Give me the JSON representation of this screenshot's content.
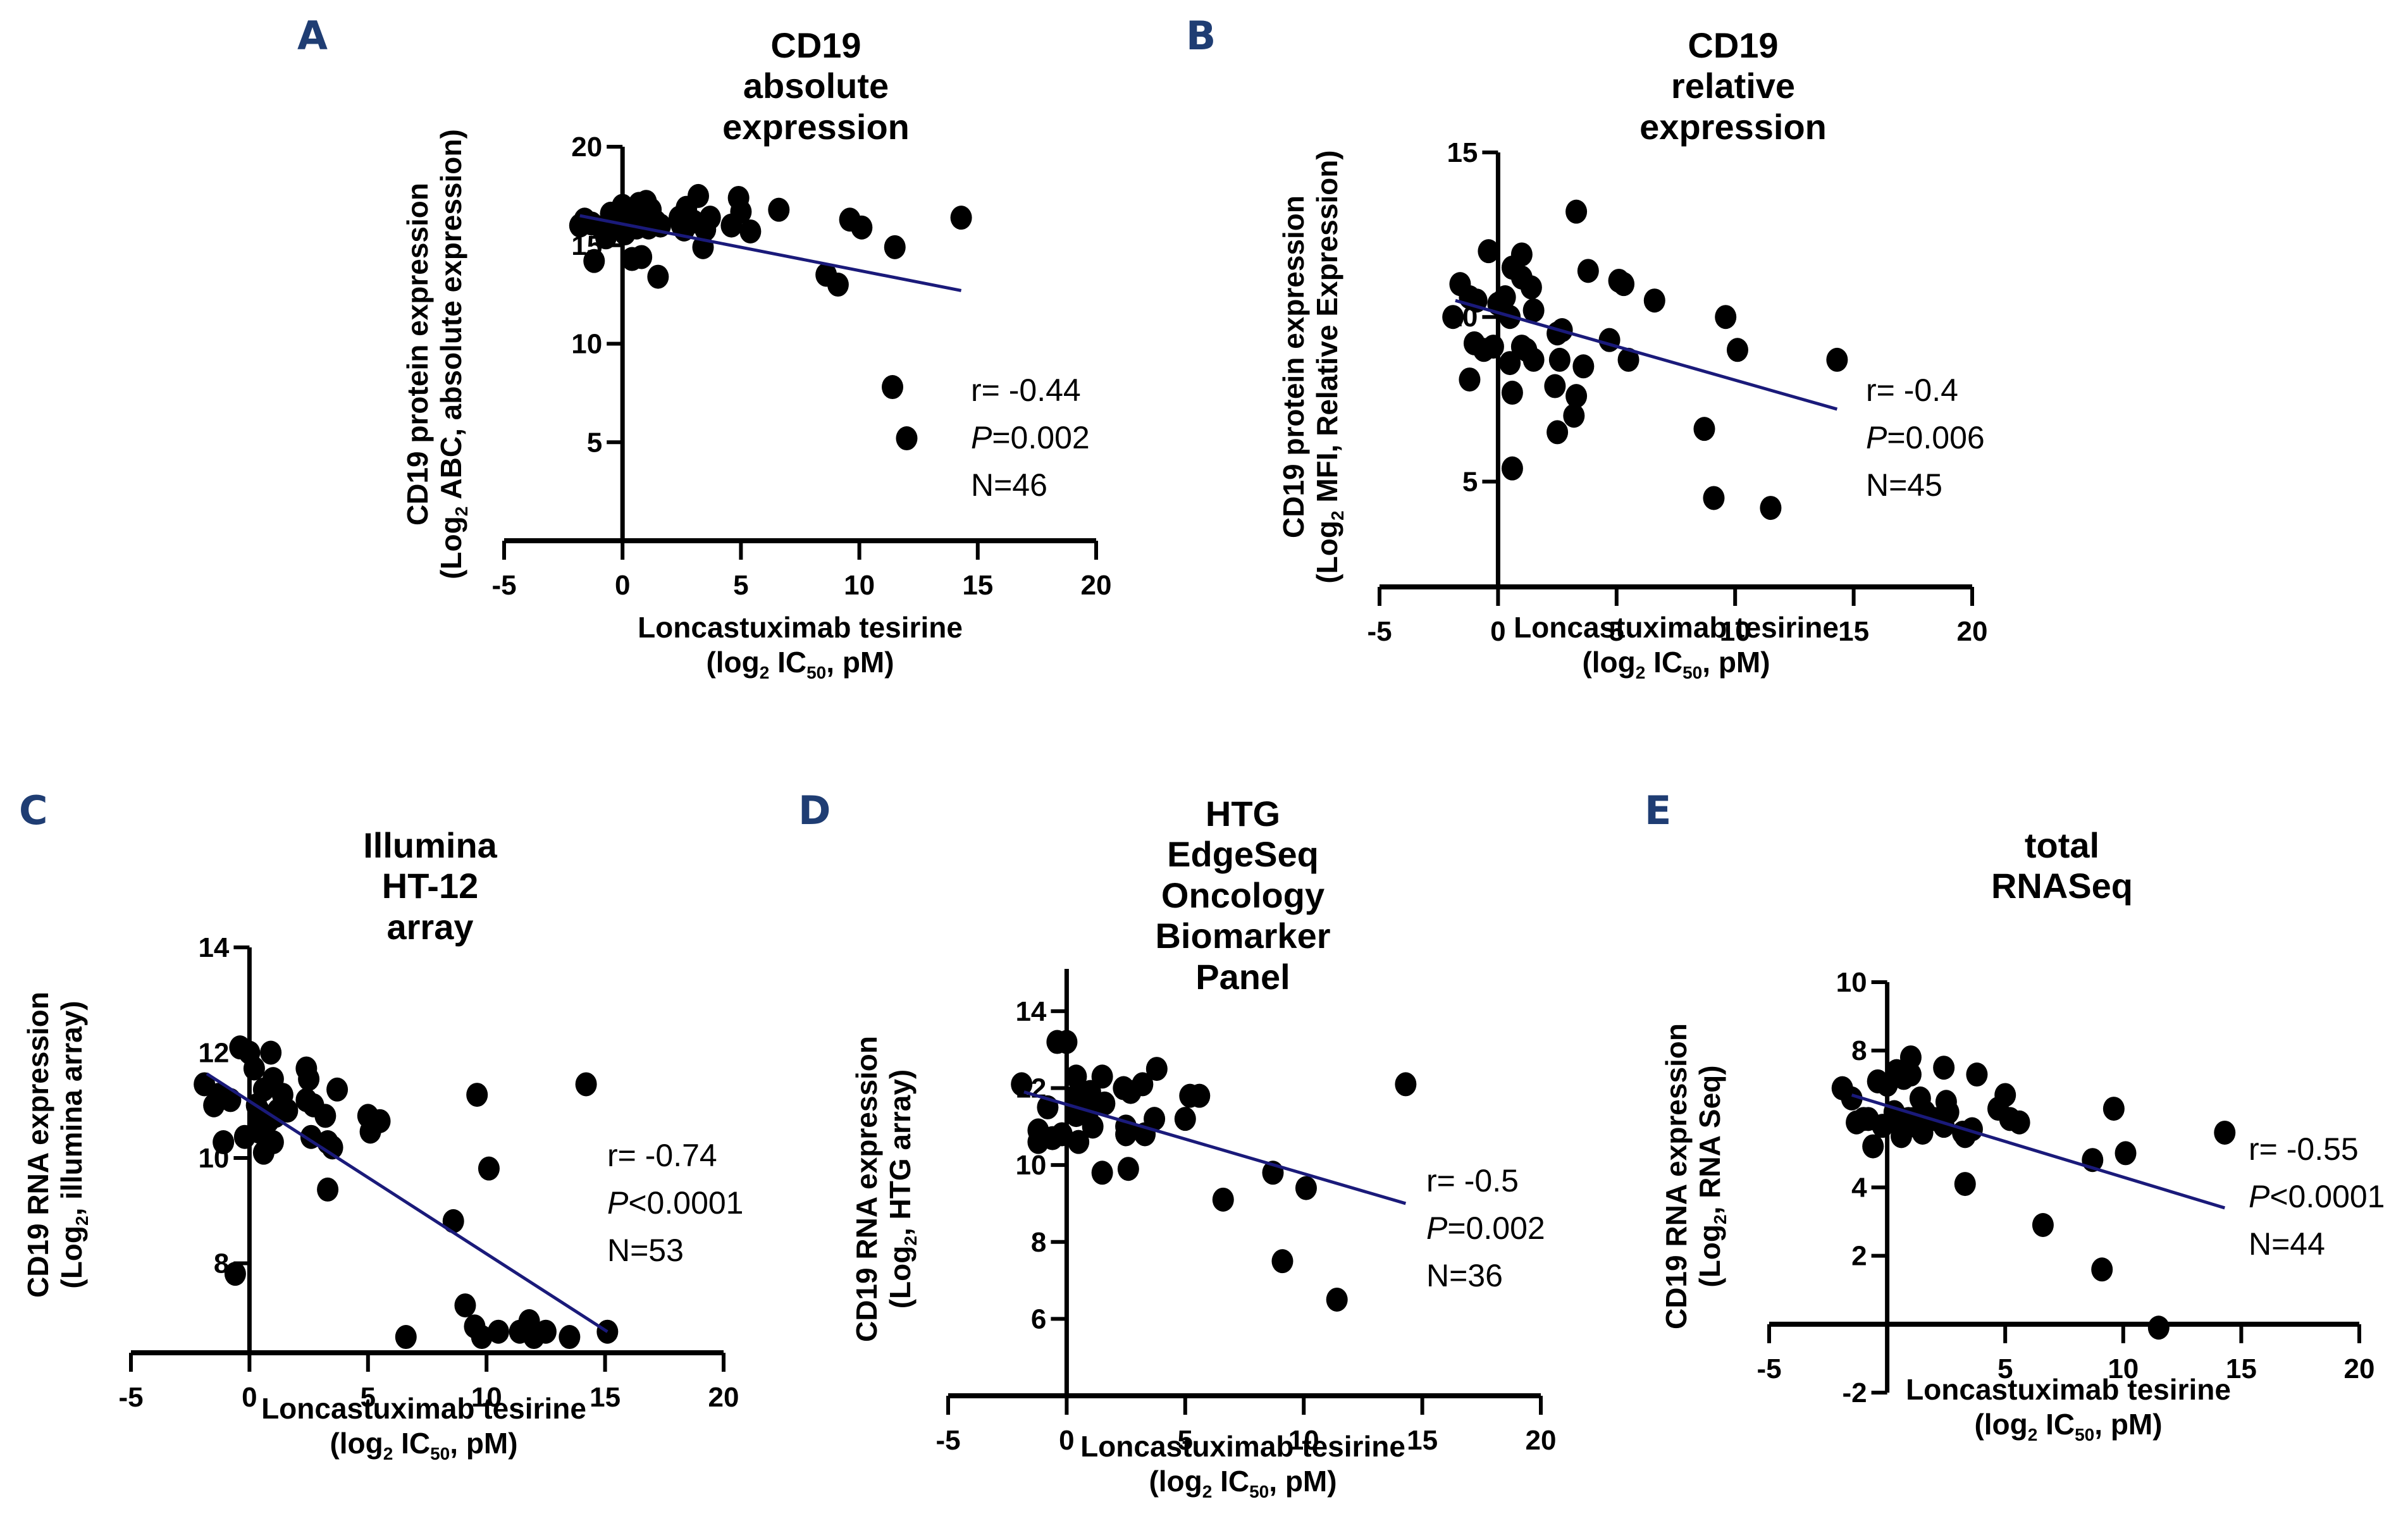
{
  "colors": {
    "panel_letter": "#1f3d73",
    "fit_line": "#1a1a7a",
    "points": "#000000",
    "axis": "#000000"
  },
  "chart_data": [
    {
      "id": "A",
      "type": "scatter",
      "letter": "A",
      "title": "CD19 absolute expression",
      "ylabel_line1": "CD19 protein expression",
      "ylabel_line2_pre": "(Log",
      "ylabel_sub": "2",
      "ylabel_line2_post": " ABC, absolute expression)",
      "xlabel_line1": "Loncastuximab tesirine",
      "xlabel_pre": "(log",
      "xlabel_sub1": "2",
      "xlabel_mid": " IC",
      "xlabel_sub2": "50",
      "xlabel_post": ", pM)",
      "xlim": [
        -5,
        20
      ],
      "ylim": [
        0,
        20
      ],
      "xticks": [
        -5,
        0,
        5,
        10,
        15,
        20
      ],
      "yticks": [
        5,
        10,
        15,
        20
      ],
      "stats": {
        "r": "r= -0.44",
        "p_label": "P",
        "p_value": "=0.002",
        "n": "N=46"
      },
      "fit": {
        "x": [
          -1.8,
          14.3
        ],
        "y": [
          16.5,
          12.7
        ]
      },
      "points": [
        [
          -1.8,
          16.0
        ],
        [
          -1.6,
          16.3
        ],
        [
          -1.3,
          16.1
        ],
        [
          -1.2,
          14.2
        ],
        [
          -0.7,
          15.4
        ],
        [
          -0.5,
          16.6
        ],
        [
          -0.2,
          16.0
        ],
        [
          0.0,
          17.0
        ],
        [
          0.1,
          15.6
        ],
        [
          0.2,
          16.2
        ],
        [
          0.4,
          14.3
        ],
        [
          0.5,
          16.5
        ],
        [
          0.6,
          15.9
        ],
        [
          0.7,
          17.1
        ],
        [
          0.8,
          14.4
        ],
        [
          0.9,
          16.7
        ],
        [
          1.0,
          17.2
        ],
        [
          1.2,
          16.8
        ],
        [
          1.4,
          16.2
        ],
        [
          1.5,
          13.4
        ],
        [
          1.6,
          16.0
        ],
        [
          2.4,
          16.4
        ],
        [
          2.6,
          15.8
        ],
        [
          2.7,
          16.9
        ],
        [
          3.0,
          16.2
        ],
        [
          3.2,
          17.5
        ],
        [
          3.4,
          14.9
        ],
        [
          3.5,
          15.8
        ],
        [
          3.7,
          16.4
        ],
        [
          4.6,
          16.0
        ],
        [
          4.9,
          17.4
        ],
        [
          5.0,
          16.7
        ],
        [
          5.4,
          15.7
        ],
        [
          6.6,
          16.8
        ],
        [
          8.6,
          13.5
        ],
        [
          9.1,
          13.0
        ],
        [
          9.6,
          16.3
        ],
        [
          10.1,
          15.9
        ],
        [
          11.4,
          7.8
        ],
        [
          11.5,
          14.9
        ],
        [
          12.0,
          5.2
        ],
        [
          14.3,
          16.4
        ],
        [
          0.3,
          16.4
        ],
        [
          1.1,
          15.9
        ],
        [
          2.5,
          16.0
        ],
        [
          -0.9,
          15.9
        ]
      ]
    },
    {
      "id": "B",
      "type": "scatter",
      "letter": "B",
      "title": "CD19 relative expression",
      "ylabel_line1": "CD19 protein expression",
      "ylabel_line2_pre": "(Log",
      "ylabel_sub": "2",
      "ylabel_line2_post": " MFI, Relative Expression)",
      "xlabel_line1": "Loncastuximab tesirine",
      "xlabel_pre": "(log",
      "xlabel_sub1": "2",
      "xlabel_mid": " IC",
      "xlabel_sub2": "50",
      "xlabel_post": ", pM)",
      "xlim": [
        -5,
        20
      ],
      "ylim": [
        1.8,
        15
      ],
      "xticks": [
        -5,
        0,
        5,
        10,
        15,
        20
      ],
      "yticks": [
        5,
        10,
        15
      ],
      "stats": {
        "r": "r= -0.4",
        "p_label": "P",
        "p_value": "=0.006",
        "n": "N=45"
      },
      "fit": {
        "x": [
          -1.8,
          14.3
        ],
        "y": [
          10.5,
          7.2
        ]
      },
      "points": [
        [
          -1.9,
          10.0
        ],
        [
          -1.6,
          11.0
        ],
        [
          -1.2,
          8.1
        ],
        [
          -1.2,
          10.6
        ],
        [
          -0.9,
          10.5
        ],
        [
          -1.0,
          9.2
        ],
        [
          -0.4,
          12.0
        ],
        [
          -0.6,
          9.0
        ],
        [
          -0.2,
          9.1
        ],
        [
          0.0,
          10.4
        ],
        [
          0.3,
          10.6
        ],
        [
          0.5,
          10.0
        ],
        [
          0.5,
          8.6
        ],
        [
          0.6,
          11.5
        ],
        [
          0.6,
          7.7
        ],
        [
          0.6,
          5.4
        ],
        [
          1.0,
          11.2
        ],
        [
          1.0,
          11.9
        ],
        [
          1.0,
          9.1
        ],
        [
          1.4,
          10.9
        ],
        [
          1.5,
          10.2
        ],
        [
          1.5,
          8.7
        ],
        [
          2.4,
          7.9
        ],
        [
          2.5,
          6.5
        ],
        [
          2.5,
          9.5
        ],
        [
          2.6,
          8.7
        ],
        [
          2.7,
          9.6
        ],
        [
          3.2,
          7.0
        ],
        [
          3.3,
          7.6
        ],
        [
          3.3,
          13.2
        ],
        [
          3.6,
          8.5
        ],
        [
          3.8,
          11.4
        ],
        [
          4.7,
          9.3
        ],
        [
          5.1,
          11.1
        ],
        [
          5.3,
          11.0
        ],
        [
          5.5,
          8.7
        ],
        [
          6.6,
          10.5
        ],
        [
          8.7,
          6.6
        ],
        [
          9.1,
          4.5
        ],
        [
          9.6,
          10.0
        ],
        [
          10.1,
          9.0
        ],
        [
          11.5,
          4.2
        ],
        [
          14.3,
          8.7
        ],
        [
          0.2,
          10.5
        ],
        [
          1.2,
          9.0
        ]
      ]
    },
    {
      "id": "C",
      "type": "scatter",
      "letter": "C",
      "title": "Illumina HT-12 array",
      "ylabel_line1": "CD19 RNA expression",
      "ylabel_line2_pre": "(Log",
      "ylabel_sub": "2",
      "ylabel_line2_post": ", illumina array)",
      "xlabel_line1": "Loncastuximab tesirine",
      "xlabel_pre": "(log",
      "xlabel_sub1": "2",
      "xlabel_mid": " IC",
      "xlabel_sub2": "50",
      "xlabel_post": ", pM)",
      "xlim": [
        -5,
        20
      ],
      "ylim": [
        6.3,
        14
      ],
      "xticks": [
        -5,
        0,
        5,
        10,
        15,
        20
      ],
      "yticks": [
        8,
        10,
        12,
        14
      ],
      "stats": {
        "r": "r= -0.74",
        "p_label": "P",
        "p_value": "<0.0001",
        "n": "N=53"
      },
      "fit": {
        "x": [
          -1.8,
          15.1
        ],
        "y": [
          11.6,
          6.7
        ]
      },
      "points": [
        [
          -1.9,
          11.4
        ],
        [
          -1.5,
          11.0
        ],
        [
          -1.3,
          11.2
        ],
        [
          -1.1,
          10.3
        ],
        [
          -0.8,
          11.1
        ],
        [
          -0.6,
          7.8
        ],
        [
          -0.4,
          12.1
        ],
        [
          -0.2,
          10.4
        ],
        [
          0.0,
          12.0
        ],
        [
          0.2,
          11.7
        ],
        [
          0.4,
          10.9
        ],
        [
          0.4,
          10.5
        ],
        [
          0.5,
          10.7
        ],
        [
          0.6,
          10.1
        ],
        [
          0.6,
          11.3
        ],
        [
          0.7,
          10.4
        ],
        [
          0.8,
          10.7
        ],
        [
          0.9,
          12.0
        ],
        [
          1.0,
          11.5
        ],
        [
          1.0,
          10.3
        ],
        [
          1.2,
          10.9
        ],
        [
          1.4,
          11.2
        ],
        [
          1.6,
          10.9
        ],
        [
          2.4,
          11.7
        ],
        [
          2.4,
          11.1
        ],
        [
          2.5,
          11.5
        ],
        [
          2.6,
          10.4
        ],
        [
          2.7,
          11.0
        ],
        [
          3.2,
          10.8
        ],
        [
          3.3,
          10.3
        ],
        [
          3.3,
          9.4
        ],
        [
          3.5,
          10.2
        ],
        [
          3.7,
          11.3
        ],
        [
          5.0,
          10.8
        ],
        [
          5.1,
          10.5
        ],
        [
          5.5,
          10.7
        ],
        [
          6.6,
          6.6
        ],
        [
          8.6,
          8.8
        ],
        [
          9.1,
          7.2
        ],
        [
          9.5,
          6.8
        ],
        [
          9.6,
          11.2
        ],
        [
          9.8,
          6.6
        ],
        [
          10.1,
          9.8
        ],
        [
          10.5,
          6.7
        ],
        [
          11.4,
          6.7
        ],
        [
          11.8,
          6.9
        ],
        [
          12.0,
          6.6
        ],
        [
          12.5,
          6.7
        ],
        [
          13.5,
          6.6
        ],
        [
          14.2,
          11.4
        ],
        [
          15.1,
          6.7
        ],
        [
          1.1,
          10.8
        ],
        [
          0.3,
          11.0
        ]
      ]
    },
    {
      "id": "D",
      "type": "scatter",
      "letter": "D",
      "title": "HTG EdgeSeq\nOncology Biomarker Panel",
      "ylabel_line1": "CD19 RNA expression",
      "ylabel_line2_pre": "(Log",
      "ylabel_sub": "2",
      "ylabel_line2_post": ", HTG array)",
      "xlabel_line1": "Loncastuximab tesirine",
      "xlabel_pre": "(log",
      "xlabel_sub1": "2",
      "xlabel_mid": " IC",
      "xlabel_sub2": "50",
      "xlabel_post": ", pM)",
      "xlim": [
        -5,
        20
      ],
      "ylim": [
        4,
        15.1
      ],
      "xticks": [
        -5,
        0,
        5,
        10,
        15,
        20
      ],
      "yticks": [
        6,
        8,
        10,
        12,
        14
      ],
      "stats": {
        "r": "r= -0.5",
        "p_label": "P",
        "p_value": "=0.002",
        "n": "N=36"
      },
      "fit": {
        "x": [
          -1.8,
          14.3
        ],
        "y": [
          11.9,
          9.0
        ]
      },
      "points": [
        [
          -1.9,
          12.1
        ],
        [
          -1.2,
          10.9
        ],
        [
          -1.2,
          10.6
        ],
        [
          -0.8,
          11.5
        ],
        [
          -0.6,
          10.7
        ],
        [
          -0.4,
          13.2
        ],
        [
          -0.2,
          10.8
        ],
        [
          0.0,
          13.2
        ],
        [
          0.4,
          12.3
        ],
        [
          0.4,
          11.8
        ],
        [
          0.4,
          11.3
        ],
        [
          0.5,
          10.6
        ],
        [
          1.0,
          11.9
        ],
        [
          1.0,
          11.5
        ],
        [
          1.1,
          11.0
        ],
        [
          1.5,
          12.3
        ],
        [
          1.5,
          9.8
        ],
        [
          1.6,
          11.6
        ],
        [
          2.4,
          12.0
        ],
        [
          2.5,
          11.0
        ],
        [
          2.5,
          10.8
        ],
        [
          2.6,
          9.9
        ],
        [
          2.7,
          11.9
        ],
        [
          3.2,
          12.1
        ],
        [
          3.3,
          10.8
        ],
        [
          3.7,
          11.2
        ],
        [
          3.8,
          12.5
        ],
        [
          5.0,
          11.2
        ],
        [
          5.2,
          11.8
        ],
        [
          5.6,
          11.8
        ],
        [
          6.6,
          9.1
        ],
        [
          8.7,
          9.8
        ],
        [
          9.1,
          7.5
        ],
        [
          10.1,
          9.4
        ],
        [
          11.4,
          6.5
        ],
        [
          14.3,
          12.1
        ]
      ]
    },
    {
      "id": "E",
      "type": "scatter",
      "letter": "E",
      "title": "total RNASeq",
      "ylabel_line1": "CD19 RNA expression",
      "ylabel_line2_pre": "(Log",
      "ylabel_sub": "2",
      "ylabel_line2_post": ",  RNA Seq)",
      "xlabel_line1": "Loncastuximab tesirine",
      "xlabel_pre": "(log",
      "xlabel_sub1": "2",
      "xlabel_mid": " IC",
      "xlabel_sub2": "50",
      "xlabel_post": ", pM)",
      "xlim": [
        -5,
        20
      ],
      "ylim": [
        -2,
        10
      ],
      "xticks": [
        -5,
        5,
        10,
        15,
        20
      ],
      "yticks": [
        -2,
        2,
        4,
        8,
        10
      ],
      "stats": {
        "r": "r= -0.55",
        "p_label": "P",
        "p_value": "<0.0001",
        "n": "N=44"
      },
      "fit": {
        "x": [
          -1.5,
          14.3
        ],
        "y": [
          6.7,
          3.4
        ]
      },
      "points": [
        [
          -1.9,
          6.9
        ],
        [
          -1.5,
          6.6
        ],
        [
          -1.3,
          5.9
        ],
        [
          -0.8,
          6.0
        ],
        [
          -0.6,
          5.2
        ],
        [
          -0.4,
          7.1
        ],
        [
          -0.2,
          5.8
        ],
        [
          0.0,
          7.0
        ],
        [
          0.4,
          7.4
        ],
        [
          0.5,
          6.0
        ],
        [
          0.5,
          5.9
        ],
        [
          0.6,
          5.5
        ],
        [
          0.7,
          7.2
        ],
        [
          0.9,
          6.0
        ],
        [
          1.0,
          7.8
        ],
        [
          1.0,
          7.3
        ],
        [
          1.1,
          6.0
        ],
        [
          1.2,
          5.8
        ],
        [
          1.4,
          6.6
        ],
        [
          1.5,
          5.6
        ],
        [
          1.6,
          6.2
        ],
        [
          2.4,
          7.5
        ],
        [
          2.4,
          5.8
        ],
        [
          2.5,
          6.5
        ],
        [
          2.6,
          6.2
        ],
        [
          3.2,
          5.6
        ],
        [
          3.3,
          4.1
        ],
        [
          3.3,
          5.5
        ],
        [
          3.6,
          5.7
        ],
        [
          3.8,
          7.3
        ],
        [
          4.7,
          6.3
        ],
        [
          5.0,
          6.7
        ],
        [
          5.2,
          6.0
        ],
        [
          5.6,
          5.9
        ],
        [
          6.6,
          2.9
        ],
        [
          8.7,
          4.8
        ],
        [
          9.1,
          1.6
        ],
        [
          9.6,
          6.3
        ],
        [
          10.1,
          5.0
        ],
        [
          11.5,
          -0.1
        ],
        [
          14.3,
          5.6
        ],
        [
          0.3,
          6.2
        ],
        [
          2.0,
          6.0
        ],
        [
          -1.0,
          6.0
        ]
      ]
    }
  ]
}
